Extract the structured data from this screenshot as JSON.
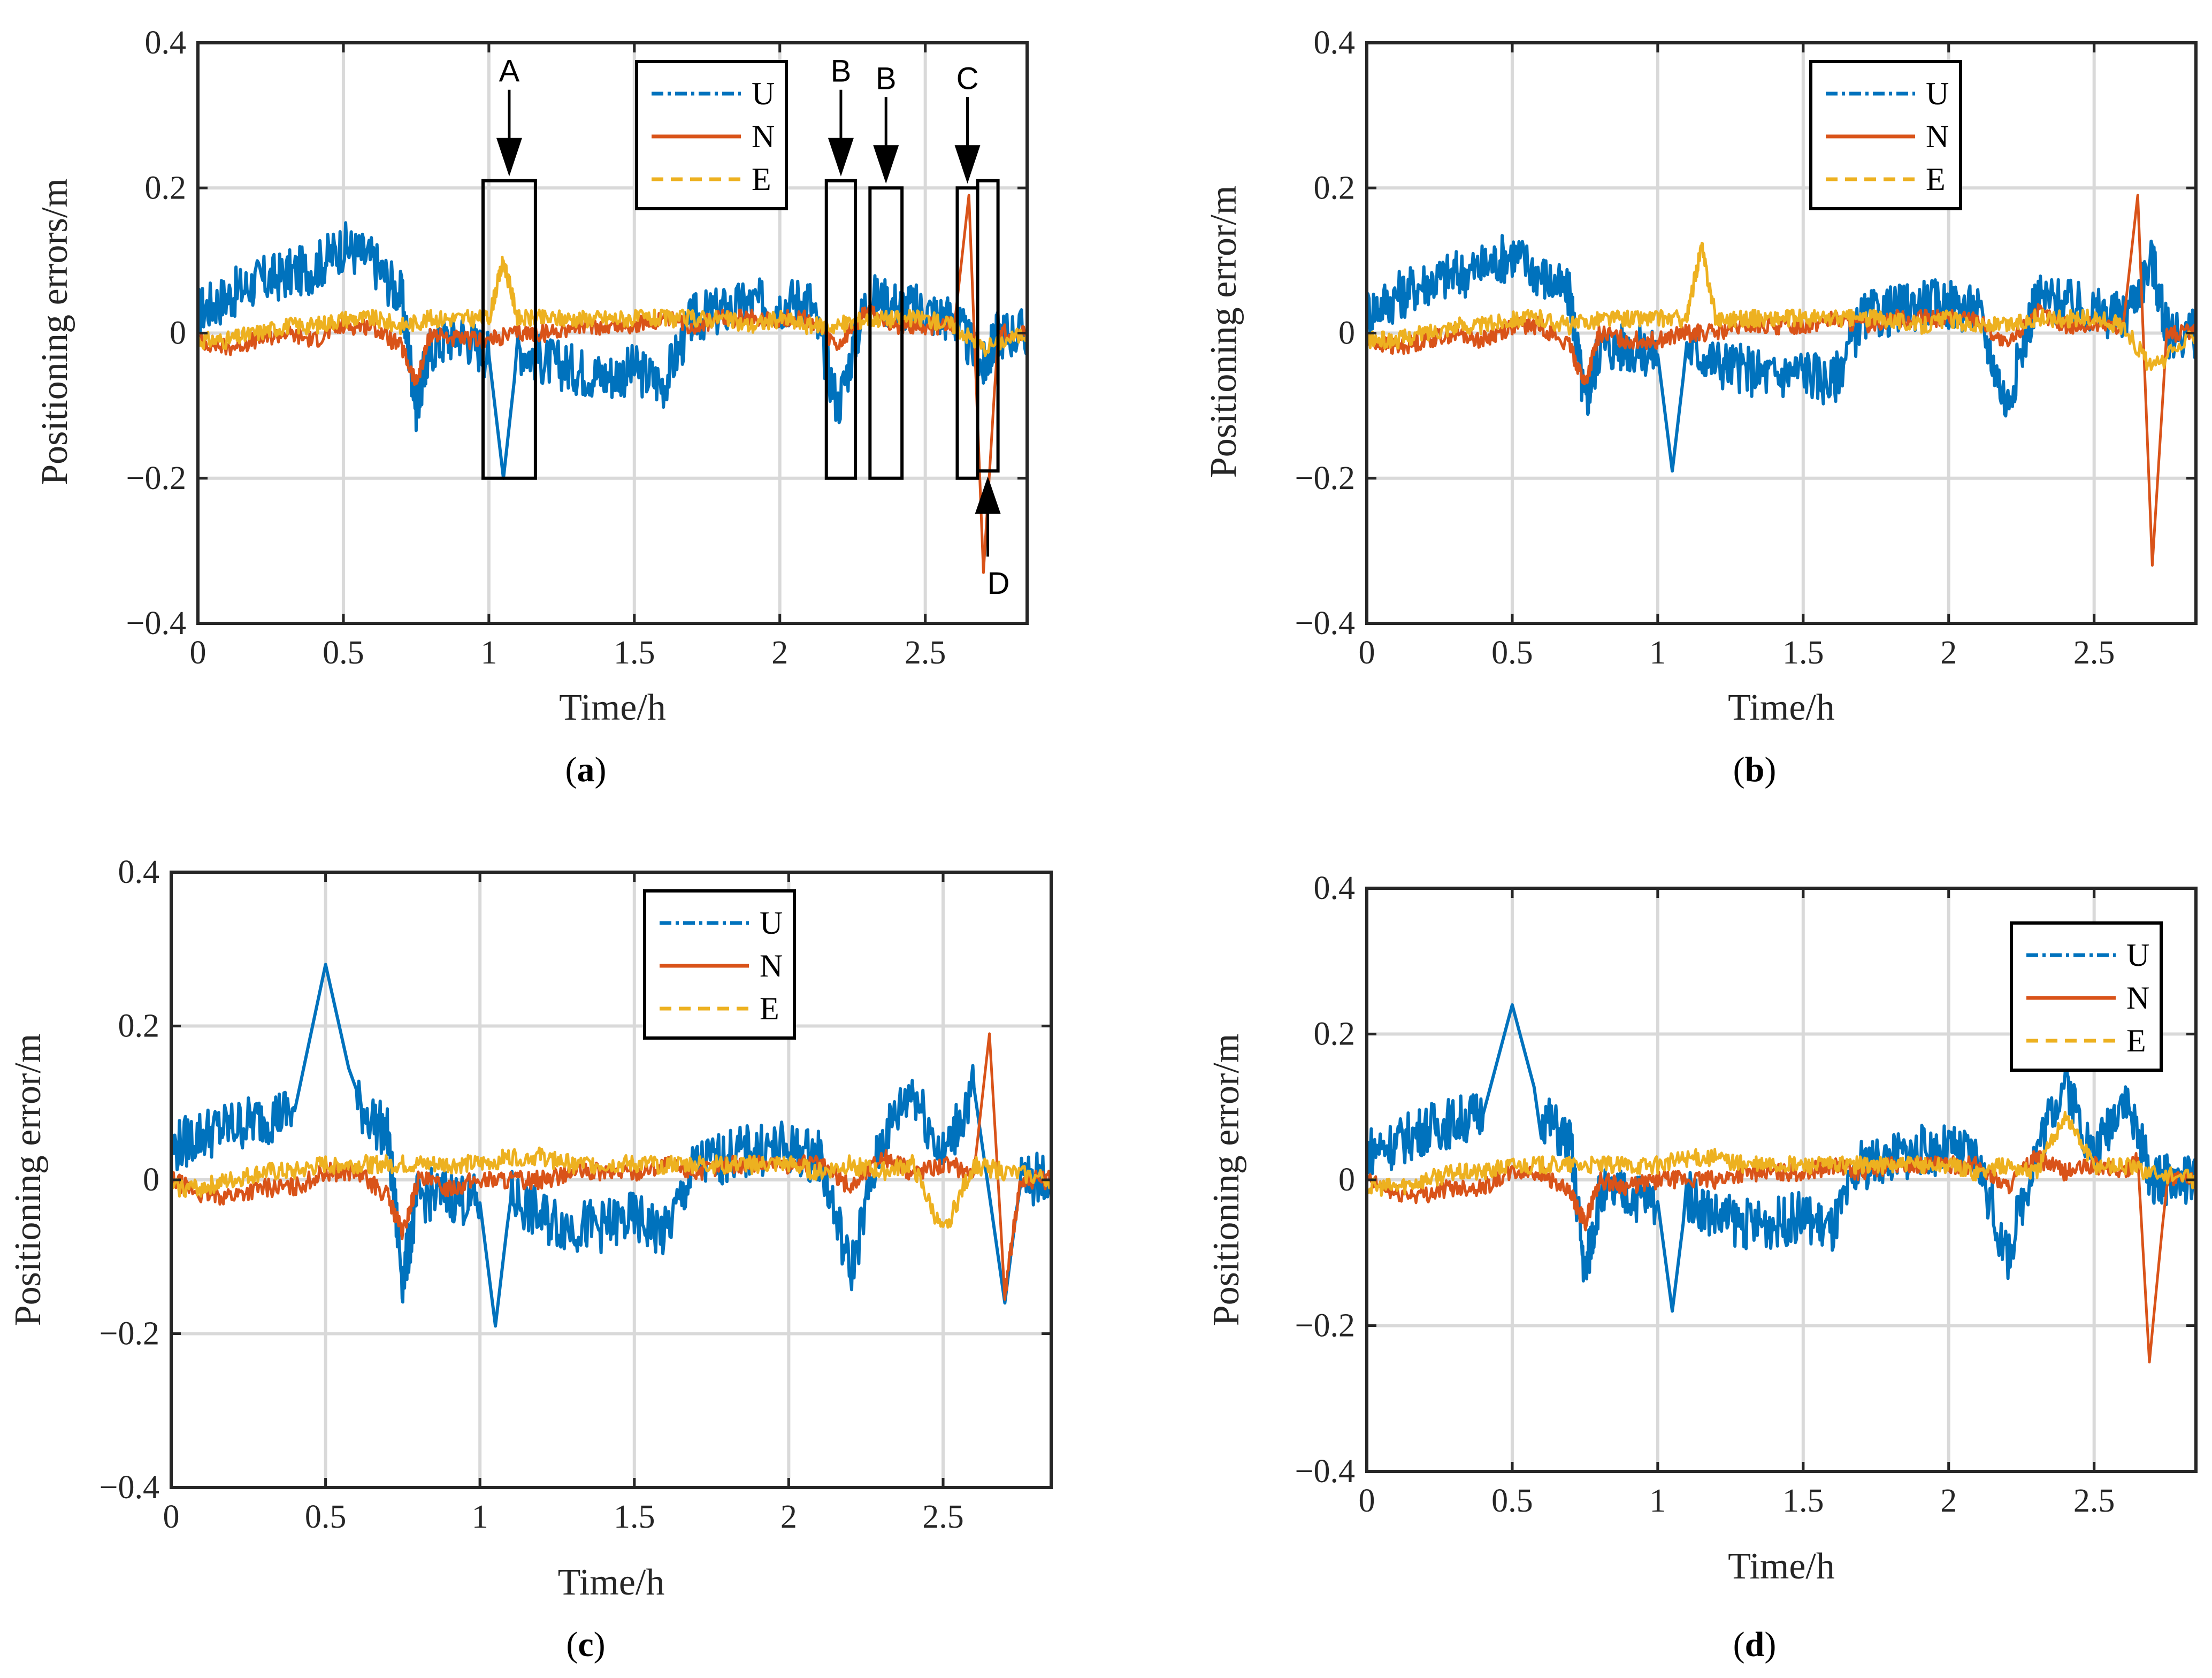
{
  "colors": {
    "U": "#0072BD",
    "N": "#D95319",
    "E": "#EDB120",
    "grid": "#d9d9d9",
    "axis": "#262626"
  },
  "chart_data": [
    {
      "type": "line",
      "panel": "(a)",
      "panel_letter": "a",
      "xlabel": "Time/h",
      "ylabel": "Positioning errors/m",
      "xlim": [
        0,
        2.85
      ],
      "ylim": [
        -0.4,
        0.4
      ],
      "xticks": [
        "0",
        "0.5",
        "1",
        "1.5",
        "2",
        "2.5"
      ],
      "yticks": [
        "−0.4",
        "−0.2",
        "0",
        "0.2",
        "0.4"
      ],
      "grid": true,
      "legend_placement": "top-right",
      "series": [
        {
          "name": "U",
          "x": [
            0,
            0.1,
            0.2,
            0.3,
            0.4,
            0.5,
            0.6,
            0.7,
            0.75,
            0.8,
            0.9,
            1.0,
            1.05,
            1.1,
            1.2,
            1.3,
            1.4,
            1.5,
            1.6,
            1.7,
            1.8,
            1.9,
            2.0,
            2.1,
            2.2,
            2.3,
            2.4,
            2.5,
            2.6,
            2.7,
            2.75,
            2.85
          ],
          "y": [
            0.03,
            0.05,
            0.07,
            0.08,
            0.09,
            0.12,
            0.1,
            0.05,
            -0.1,
            -0.02,
            0.0,
            -0.03,
            -0.2,
            -0.02,
            -0.04,
            -0.05,
            -0.06,
            -0.05,
            -0.07,
            0.02,
            0.03,
            0.04,
            0.04,
            0.05,
            -0.1,
            0.05,
            0.04,
            0.03,
            0.02,
            -0.05,
            0.0,
            0.0
          ]
        },
        {
          "name": "N",
          "x": [
            0,
            0.1,
            0.2,
            0.3,
            0.4,
            0.5,
            0.6,
            0.7,
            0.75,
            0.8,
            0.9,
            1.0,
            1.1,
            1.2,
            1.3,
            1.4,
            1.5,
            1.6,
            1.7,
            1.8,
            1.9,
            2.0,
            2.1,
            2.2,
            2.3,
            2.4,
            2.5,
            2.6,
            2.65,
            2.7,
            2.75,
            2.85
          ],
          "y": [
            -0.01,
            -0.02,
            -0.01,
            0.0,
            -0.01,
            0.01,
            0.01,
            -0.02,
            -0.07,
            0.0,
            -0.01,
            -0.01,
            0.0,
            0.0,
            0.01,
            0.01,
            0.01,
            0.02,
            0.01,
            0.02,
            0.02,
            0.02,
            0.02,
            -0.02,
            0.03,
            0.01,
            0.01,
            0.01,
            0.19,
            -0.33,
            0.0,
            0.0
          ]
        },
        {
          "name": "E",
          "x": [
            0,
            0.1,
            0.2,
            0.3,
            0.4,
            0.5,
            0.6,
            0.7,
            0.8,
            0.9,
            1.0,
            1.05,
            1.1,
            1.2,
            1.3,
            1.4,
            1.5,
            1.6,
            1.7,
            1.8,
            1.9,
            2.0,
            2.1,
            2.2,
            2.3,
            2.4,
            2.5,
            2.6,
            2.7,
            2.85
          ],
          "y": [
            -0.01,
            -0.01,
            0.0,
            0.01,
            0.01,
            0.02,
            0.02,
            0.01,
            0.02,
            0.02,
            0.02,
            0.1,
            0.02,
            0.02,
            0.02,
            0.02,
            0.02,
            0.02,
            0.02,
            0.02,
            0.01,
            0.02,
            0.01,
            0.01,
            0.02,
            0.02,
            0.02,
            0.01,
            -0.02,
            0.0
          ]
        }
      ],
      "annotations": [
        {
          "label": "A",
          "box_x": [
            0.98,
            1.16
          ],
          "box_y": [
            -0.2,
            0.21
          ]
        },
        {
          "label": "B",
          "box_x": [
            2.16,
            2.26
          ],
          "box_y": [
            -0.2,
            0.21
          ]
        },
        {
          "label": "B",
          "box_x": [
            2.31,
            2.42
          ],
          "box_y": [
            -0.2,
            0.2
          ]
        },
        {
          "label": "C",
          "box_x": [
            2.61,
            2.68
          ],
          "box_y": [
            -0.2,
            0.2
          ]
        },
        {
          "label": "D",
          "box_x": [
            2.68,
            2.75
          ],
          "box_y": [
            -0.19,
            0.21
          ]
        }
      ]
    },
    {
      "type": "line",
      "panel": "(b)",
      "panel_letter": "b",
      "xlabel": "Time/h",
      "ylabel": "Positioning error/m",
      "xlim": [
        0,
        2.85
      ],
      "ylim": [
        -0.4,
        0.4
      ],
      "xticks": [
        "0",
        "0.5",
        "1",
        "1.5",
        "2",
        "2.5"
      ],
      "yticks": [
        "−0.4",
        "−0.2",
        "0",
        "0.2",
        "0.4"
      ],
      "grid": true,
      "legend_placement": "top-right",
      "series": [
        {
          "name": "U",
          "x": [
            0,
            0.1,
            0.2,
            0.3,
            0.4,
            0.5,
            0.6,
            0.7,
            0.75,
            0.8,
            0.9,
            1.0,
            1.05,
            1.1,
            1.2,
            1.3,
            1.4,
            1.5,
            1.6,
            1.7,
            1.8,
            1.9,
            2.0,
            2.1,
            2.2,
            2.3,
            2.4,
            2.5,
            2.6,
            2.7,
            2.75,
            2.85
          ],
          "y": [
            0.03,
            0.05,
            0.07,
            0.08,
            0.09,
            0.11,
            0.08,
            0.05,
            -0.1,
            -0.02,
            -0.02,
            -0.03,
            -0.19,
            -0.02,
            -0.04,
            -0.05,
            -0.06,
            -0.05,
            -0.07,
            0.02,
            0.03,
            0.04,
            0.04,
            0.03,
            -0.1,
            0.05,
            0.04,
            0.03,
            0.02,
            0.1,
            0.0,
            0.0
          ]
        },
        {
          "name": "N",
          "x": [
            0,
            0.1,
            0.2,
            0.3,
            0.4,
            0.5,
            0.6,
            0.7,
            0.75,
            0.8,
            0.9,
            1.0,
            1.1,
            1.2,
            1.3,
            1.4,
            1.5,
            1.6,
            1.7,
            1.8,
            1.9,
            2.0,
            2.1,
            2.2,
            2.3,
            2.4,
            2.5,
            2.6,
            2.65,
            2.7,
            2.75,
            2.85
          ],
          "y": [
            -0.01,
            -0.02,
            -0.01,
            0.0,
            -0.01,
            0.01,
            0.01,
            -0.02,
            -0.07,
            0.0,
            -0.01,
            -0.01,
            0.0,
            0.0,
            0.01,
            0.01,
            0.01,
            0.02,
            0.01,
            0.02,
            0.02,
            0.02,
            0.02,
            -0.02,
            0.03,
            0.01,
            0.01,
            0.01,
            0.19,
            -0.32,
            0.0,
            0.0
          ]
        },
        {
          "name": "E",
          "x": [
            0,
            0.1,
            0.2,
            0.3,
            0.4,
            0.5,
            0.6,
            0.7,
            0.8,
            0.9,
            1.0,
            1.1,
            1.15,
            1.2,
            1.3,
            1.4,
            1.5,
            1.6,
            1.7,
            1.8,
            1.9,
            2.0,
            2.1,
            2.2,
            2.3,
            2.4,
            2.5,
            2.6,
            2.7,
            2.85
          ],
          "y": [
            -0.01,
            -0.01,
            0.0,
            0.01,
            0.01,
            0.02,
            0.02,
            0.01,
            0.02,
            0.02,
            0.02,
            0.02,
            0.12,
            0.02,
            0.02,
            0.02,
            0.02,
            0.02,
            0.02,
            0.02,
            0.01,
            0.02,
            0.01,
            0.01,
            0.02,
            0.02,
            0.02,
            0.01,
            -0.05,
            0.0
          ]
        }
      ]
    },
    {
      "type": "line",
      "panel": "(c)",
      "panel_letter": "c",
      "xlabel": "Time/h",
      "ylabel": "Positioning error/m",
      "xlim": [
        0,
        2.85
      ],
      "ylim": [
        -0.4,
        0.4
      ],
      "xticks": [
        "0",
        "0.5",
        "1",
        "1.5",
        "2",
        "2.5"
      ],
      "yticks": [
        "−0.4",
        "−0.2",
        "0",
        "0.2",
        "0.4"
      ],
      "grid": true,
      "legend_placement": "top-center",
      "series": [
        {
          "name": "U",
          "x": [
            0,
            0.1,
            0.2,
            0.3,
            0.4,
            0.5,
            0.6,
            0.7,
            0.75,
            0.8,
            0.9,
            1.0,
            1.05,
            1.1,
            1.2,
            1.3,
            1.4,
            1.5,
            1.6,
            1.7,
            1.8,
            1.9,
            2.0,
            2.1,
            2.2,
            2.3,
            2.4,
            2.5,
            2.6,
            2.7,
            2.75,
            2.85
          ],
          "y": [
            0.04,
            0.06,
            0.07,
            0.08,
            0.09,
            0.28,
            0.1,
            0.06,
            -0.13,
            -0.02,
            -0.02,
            -0.03,
            -0.19,
            -0.02,
            -0.05,
            -0.06,
            -0.06,
            -0.05,
            -0.07,
            0.02,
            0.03,
            0.04,
            0.04,
            0.03,
            -0.12,
            0.05,
            0.12,
            0.03,
            0.12,
            -0.16,
            0.0,
            0.0
          ]
        },
        {
          "name": "N",
          "x": [
            0,
            0.1,
            0.2,
            0.3,
            0.4,
            0.5,
            0.6,
            0.7,
            0.75,
            0.8,
            0.9,
            1.0,
            1.1,
            1.2,
            1.3,
            1.4,
            1.5,
            1.6,
            1.7,
            1.8,
            1.9,
            2.0,
            2.1,
            2.2,
            2.3,
            2.4,
            2.5,
            2.6,
            2.65,
            2.7,
            2.75,
            2.85
          ],
          "y": [
            0.0,
            -0.02,
            -0.02,
            -0.01,
            -0.01,
            0.01,
            0.01,
            -0.02,
            -0.07,
            0.0,
            -0.01,
            0.0,
            0.0,
            0.0,
            0.01,
            0.01,
            0.01,
            0.02,
            0.01,
            0.02,
            0.02,
            0.02,
            0.02,
            -0.01,
            0.03,
            0.01,
            0.02,
            0.01,
            0.19,
            -0.15,
            0.0,
            0.0
          ]
        },
        {
          "name": "E",
          "x": [
            0,
            0.1,
            0.2,
            0.3,
            0.4,
            0.5,
            0.6,
            0.7,
            0.8,
            0.9,
            1.0,
            1.1,
            1.2,
            1.3,
            1.4,
            1.5,
            1.6,
            1.7,
            1.8,
            1.9,
            2.0,
            2.1,
            2.2,
            2.3,
            2.4,
            2.5,
            2.6,
            2.7,
            2.85
          ],
          "y": [
            -0.01,
            -0.01,
            0.0,
            0.01,
            0.01,
            0.02,
            0.02,
            0.02,
            0.02,
            0.02,
            0.02,
            0.03,
            0.03,
            0.02,
            0.02,
            0.02,
            0.02,
            0.02,
            0.02,
            0.02,
            0.02,
            0.01,
            0.02,
            0.01,
            0.02,
            -0.07,
            0.02,
            0.01,
            0.0
          ]
        }
      ]
    },
    {
      "type": "line",
      "panel": "(d)",
      "panel_letter": "d",
      "xlabel": "Time/h",
      "ylabel": "Positioning error/m",
      "xlim": [
        0,
        2.85
      ],
      "ylim": [
        -0.4,
        0.4
      ],
      "xticks": [
        "0",
        "0.5",
        "1",
        "1.5",
        "2",
        "2.5"
      ],
      "yticks": [
        "−0.4",
        "−0.2",
        "0",
        "0.2",
        "0.4"
      ],
      "grid": true,
      "legend_placement": "top-right",
      "series": [
        {
          "name": "U",
          "x": [
            0,
            0.1,
            0.2,
            0.3,
            0.4,
            0.5,
            0.6,
            0.7,
            0.75,
            0.8,
            0.9,
            1.0,
            1.05,
            1.1,
            1.2,
            1.3,
            1.4,
            1.5,
            1.6,
            1.7,
            1.8,
            1.9,
            2.0,
            2.1,
            2.2,
            2.3,
            2.4,
            2.5,
            2.6,
            2.7,
            2.75,
            2.85
          ],
          "y": [
            0.04,
            0.05,
            0.07,
            0.08,
            0.09,
            0.24,
            0.09,
            0.05,
            -0.13,
            -0.02,
            -0.02,
            -0.03,
            -0.18,
            -0.02,
            -0.05,
            -0.06,
            -0.06,
            -0.05,
            -0.07,
            0.02,
            0.03,
            0.04,
            0.04,
            0.03,
            -0.11,
            0.04,
            0.14,
            0.03,
            0.12,
            0.0,
            0.0,
            0.0
          ]
        },
        {
          "name": "N",
          "x": [
            0,
            0.1,
            0.2,
            0.3,
            0.4,
            0.5,
            0.6,
            0.7,
            0.75,
            0.8,
            0.9,
            1.0,
            1.1,
            1.2,
            1.3,
            1.4,
            1.5,
            1.6,
            1.7,
            1.8,
            1.9,
            2.0,
            2.1,
            2.2,
            2.3,
            2.4,
            2.5,
            2.6,
            2.65,
            2.69,
            2.75,
            2.85
          ],
          "y": [
            0.0,
            -0.02,
            -0.02,
            -0.01,
            -0.01,
            0.01,
            0.01,
            -0.02,
            -0.06,
            0.0,
            -0.01,
            0.0,
            0.0,
            0.0,
            0.01,
            0.01,
            0.01,
            0.02,
            0.01,
            0.02,
            0.02,
            0.02,
            0.02,
            -0.01,
            0.03,
            0.01,
            0.02,
            0.01,
            0.03,
            -0.25,
            0.0,
            0.0
          ]
        },
        {
          "name": "E",
          "x": [
            0,
            0.1,
            0.2,
            0.3,
            0.4,
            0.5,
            0.6,
            0.7,
            0.8,
            0.9,
            1.0,
            1.1,
            1.2,
            1.3,
            1.4,
            1.5,
            1.6,
            1.7,
            1.8,
            1.9,
            2.0,
            2.1,
            2.2,
            2.3,
            2.4,
            2.5,
            2.6,
            2.7,
            2.85
          ],
          "y": [
            -0.01,
            -0.01,
            0.0,
            0.01,
            0.01,
            0.02,
            0.02,
            0.02,
            0.02,
            0.02,
            0.02,
            0.03,
            0.03,
            0.02,
            0.02,
            0.02,
            0.02,
            0.02,
            0.02,
            0.02,
            0.02,
            0.01,
            0.02,
            0.01,
            0.09,
            0.02,
            0.02,
            0.01,
            0.0
          ]
        }
      ]
    }
  ]
}
